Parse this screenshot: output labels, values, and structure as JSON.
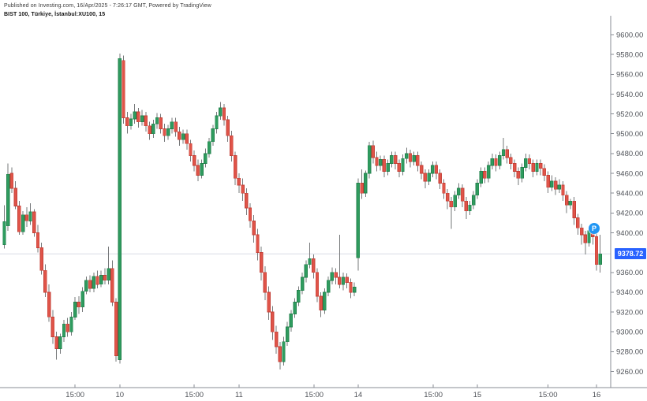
{
  "header": {
    "published_line": "Published on Investing.com, 16/Apr/2025 - 7:26:17 GMT, Powered by TradingView",
    "instrument_line": "BIST 100, Türkiye, İstanbul:XU100, 15"
  },
  "chart_data": {
    "type": "candlestick",
    "title": "BIST 100, Türkiye, İstanbul:XU100, 15",
    "symbol": "İstanbul:XU100",
    "interval_minutes": 15,
    "last_price": "9378.72",
    "last_price_value": 9378.72,
    "marker": {
      "label": "P",
      "price": 9404
    },
    "y_axis": {
      "ylim": [
        9243.7,
        9619.1
      ],
      "tick_values": [
        9600,
        9580,
        9560,
        9540,
        9520,
        9500,
        9480,
        9460,
        9440,
        9420,
        9400,
        9360,
        9340,
        9320,
        9300,
        9280,
        9260
      ],
      "tick_decimals": 2
    },
    "x_axis": {
      "ticks": [
        {
          "label": "15:00",
          "i": 19
        },
        {
          "label": "10",
          "i": 31
        },
        {
          "label": "15:00",
          "i": 51
        },
        {
          "label": "11",
          "i": 63
        },
        {
          "label": "15:00",
          "i": 83.2
        },
        {
          "label": "14",
          "i": 95
        },
        {
          "label": "15:00",
          "i": 115.2
        },
        {
          "label": "15",
          "i": 127
        },
        {
          "label": "15:00",
          "i": 146
        },
        {
          "label": "16",
          "i": 159
        }
      ]
    },
    "colors": {
      "up": "#2f9c5f",
      "up_border": "#23824c",
      "down": "#e05449",
      "down_border": "#c43f36",
      "wick": "#76787a",
      "axis_line": "#888c94",
      "axis_text": "#4f5258",
      "price_line": "#d8dce6",
      "badge_bg": "#2962ff",
      "badge_text": "#ffffff",
      "marker_bg": "#2196f3"
    },
    "candles": [
      [
        9388,
        9428,
        9384,
        9411
      ],
      [
        9407,
        9470,
        9402,
        9459
      ],
      [
        9460,
        9466,
        9440,
        9445
      ],
      [
        9445,
        9452,
        9424,
        9427
      ],
      [
        9427,
        9432,
        9398,
        9401
      ],
      [
        9401,
        9422,
        9398,
        9418
      ],
      [
        9418,
        9426,
        9406,
        9412
      ],
      [
        9412,
        9430,
        9408,
        9421
      ],
      [
        9421,
        9424,
        9396,
        9400
      ],
      [
        9400,
        9408,
        9380,
        9385
      ],
      [
        9385,
        9390,
        9358,
        9362
      ],
      [
        9362,
        9368,
        9335,
        9340
      ],
      [
        9340,
        9348,
        9310,
        9315
      ],
      [
        9315,
        9322,
        9288,
        9295
      ],
      [
        9295,
        9300,
        9272,
        9283
      ],
      [
        9283,
        9298,
        9278,
        9295
      ],
      [
        9295,
        9312,
        9290,
        9308
      ],
      [
        9308,
        9314,
        9295,
        9300
      ],
      [
        9300,
        9320,
        9296,
        9315
      ],
      [
        9315,
        9335,
        9312,
        9330
      ],
      [
        9330,
        9336,
        9318,
        9325
      ],
      [
        9325,
        9345,
        9320,
        9341
      ],
      [
        9341,
        9356,
        9338,
        9352
      ],
      [
        9352,
        9357,
        9340,
        9344
      ],
      [
        9344,
        9360,
        9340,
        9356
      ],
      [
        9356,
        9362,
        9344,
        9348
      ],
      [
        9348,
        9362,
        9345,
        9357
      ],
      [
        9357,
        9364,
        9348,
        9352
      ],
      [
        9352,
        9386,
        9348,
        9364
      ],
      [
        9364,
        9372,
        9326,
        9330
      ],
      [
        9330,
        9334,
        9270,
        9276
      ],
      [
        9272,
        9581,
        9268,
        9576
      ],
      [
        9574,
        9579,
        9510,
        9516
      ],
      [
        9516,
        9522,
        9500,
        9508
      ],
      [
        9508,
        9520,
        9504,
        9515
      ],
      [
        9515,
        9530,
        9510,
        9522
      ],
      [
        9522,
        9526,
        9506,
        9512
      ],
      [
        9512,
        9524,
        9508,
        9518
      ],
      [
        9518,
        9522,
        9502,
        9508
      ],
      [
        9508,
        9512,
        9494,
        9500
      ],
      [
        9500,
        9514,
        9496,
        9510
      ],
      [
        9510,
        9521,
        9505,
        9516
      ],
      [
        9516,
        9520,
        9500,
        9505
      ],
      [
        9505,
        9510,
        9492,
        9498
      ],
      [
        9498,
        9509,
        9494,
        9505
      ],
      [
        9505,
        9516,
        9500,
        9512
      ],
      [
        9512,
        9516,
        9497,
        9502
      ],
      [
        9502,
        9507,
        9488,
        9494
      ],
      [
        9494,
        9504,
        9490,
        9500
      ],
      [
        9500,
        9504,
        9484,
        9490
      ],
      [
        9490,
        9494,
        9472,
        9478
      ],
      [
        9478,
        9483,
        9462,
        9468
      ],
      [
        9468,
        9474,
        9452,
        9458
      ],
      [
        9458,
        9474,
        9455,
        9470
      ],
      [
        9470,
        9485,
        9466,
        9480
      ],
      [
        9480,
        9496,
        9476,
        9492
      ],
      [
        9492,
        9509,
        9488,
        9505
      ],
      [
        9505,
        9522,
        9500,
        9518
      ],
      [
        9518,
        9532,
        9514,
        9526
      ],
      [
        9526,
        9530,
        9508,
        9514
      ],
      [
        9514,
        9518,
        9492,
        9498
      ],
      [
        9498,
        9503,
        9472,
        9478
      ],
      [
        9478,
        9482,
        9448,
        9455
      ],
      [
        9455,
        9460,
        9440,
        9448
      ],
      [
        9448,
        9455,
        9432,
        9440
      ],
      [
        9440,
        9445,
        9418,
        9425
      ],
      [
        9425,
        9430,
        9405,
        9412
      ],
      [
        9412,
        9418,
        9390,
        9398
      ],
      [
        9398,
        9404,
        9372,
        9380
      ],
      [
        9380,
        9386,
        9352,
        9360
      ],
      [
        9360,
        9366,
        9332,
        9340
      ],
      [
        9340,
        9346,
        9312,
        9320
      ],
      [
        9320,
        9326,
        9292,
        9300
      ],
      [
        9300,
        9306,
        9278,
        9285
      ],
      [
        9285,
        9290,
        9262,
        9270
      ],
      [
        9270,
        9295,
        9266,
        9290
      ],
      [
        9290,
        9310,
        9286,
        9305
      ],
      [
        9305,
        9322,
        9300,
        9318
      ],
      [
        9318,
        9334,
        9314,
        9330
      ],
      [
        9330,
        9346,
        9326,
        9342
      ],
      [
        9342,
        9360,
        9338,
        9355
      ],
      [
        9355,
        9372,
        9350,
        9368
      ],
      [
        9368,
        9390,
        9364,
        9374
      ],
      [
        9374,
        9378,
        9354,
        9360
      ],
      [
        9360,
        9364,
        9330,
        9336
      ],
      [
        9336,
        9340,
        9315,
        9322
      ],
      [
        9322,
        9344,
        9318,
        9340
      ],
      [
        9340,
        9356,
        9336,
        9352
      ],
      [
        9352,
        9365,
        9348,
        9360
      ],
      [
        9360,
        9364,
        9348,
        9355
      ],
      [
        9355,
        9398,
        9344,
        9348
      ],
      [
        9348,
        9360,
        9342,
        9355
      ],
      [
        9355,
        9359,
        9344,
        9350
      ],
      [
        9350,
        9354,
        9334,
        9340
      ],
      [
        9340,
        9350,
        9336,
        9345
      ],
      [
        9375,
        9455,
        9362,
        9450
      ],
      [
        9450,
        9464,
        9434,
        9440
      ],
      [
        9440,
        9463,
        9436,
        9460
      ],
      [
        9460,
        9492,
        9455,
        9488
      ],
      [
        9488,
        9493,
        9470,
        9476
      ],
      [
        9476,
        9482,
        9462,
        9468
      ],
      [
        9468,
        9478,
        9463,
        9474
      ],
      [
        9474,
        9478,
        9456,
        9462
      ],
      [
        9462,
        9474,
        9458,
        9470
      ],
      [
        9470,
        9482,
        9466,
        9478
      ],
      [
        9478,
        9482,
        9464,
        9470
      ],
      [
        9470,
        9474,
        9456,
        9462
      ],
      [
        9462,
        9479,
        9458,
        9475
      ],
      [
        9475,
        9486,
        9470,
        9480
      ],
      [
        9480,
        9484,
        9466,
        9472
      ],
      [
        9472,
        9482,
        9468,
        9478
      ],
      [
        9478,
        9482,
        9462,
        9468
      ],
      [
        9468,
        9472,
        9454,
        9460
      ],
      [
        9460,
        9464,
        9445,
        9452
      ],
      [
        9452,
        9464,
        9448,
        9460
      ],
      [
        9460,
        9472,
        9456,
        9468
      ],
      [
        9468,
        9472,
        9454,
        9460
      ],
      [
        9460,
        9464,
        9444,
        9450
      ],
      [
        9450,
        9454,
        9434,
        9440
      ],
      [
        9440,
        9444,
        9424,
        9432
      ],
      [
        9432,
        9436,
        9404,
        9426
      ],
      [
        9426,
        9442,
        9422,
        9438
      ],
      [
        9438,
        9450,
        9434,
        9445
      ],
      [
        9445,
        9449,
        9426,
        9432
      ],
      [
        9432,
        9436,
        9414,
        9422
      ],
      [
        9422,
        9432,
        9418,
        9428
      ],
      [
        9428,
        9442,
        9424,
        9438
      ],
      [
        9438,
        9454,
        9434,
        9450
      ],
      [
        9450,
        9466,
        9446,
        9462
      ],
      [
        9462,
        9466,
        9450,
        9455
      ],
      [
        9455,
        9472,
        9451,
        9468
      ],
      [
        9468,
        9480,
        9464,
        9475
      ],
      [
        9475,
        9479,
        9462,
        9468
      ],
      [
        9468,
        9482,
        9464,
        9478
      ],
      [
        9478,
        9496,
        9474,
        9484
      ],
      [
        9484,
        9488,
        9470,
        9476
      ],
      [
        9476,
        9480,
        9464,
        9470
      ],
      [
        9470,
        9474,
        9456,
        9462
      ],
      [
        9462,
        9466,
        9448,
        9455
      ],
      [
        9455,
        9470,
        9451,
        9466
      ],
      [
        9466,
        9480,
        9462,
        9475
      ],
      [
        9475,
        9479,
        9464,
        9470
      ],
      [
        9470,
        9474,
        9456,
        9462
      ],
      [
        9462,
        9474,
        9458,
        9470
      ],
      [
        9470,
        9474,
        9458,
        9465
      ],
      [
        9465,
        9469,
        9452,
        9458
      ],
      [
        9458,
        9462,
        9440,
        9446
      ],
      [
        9446,
        9458,
        9442,
        9452
      ],
      [
        9452,
        9456,
        9438,
        9444
      ],
      [
        9444,
        9454,
        9440,
        9448
      ],
      [
        9448,
        9452,
        9432,
        9438
      ],
      [
        9438,
        9442,
        9420,
        9428
      ],
      [
        9428,
        9434,
        9424,
        9432
      ],
      [
        9432,
        9436,
        9408,
        9415
      ],
      [
        9415,
        9419,
        9398,
        9405
      ],
      [
        9405,
        9409,
        9388,
        9398
      ],
      [
        9398,
        9402,
        9378,
        9390
      ],
      [
        9390,
        9404,
        9386,
        9402
      ],
      [
        9402,
        9406,
        9388,
        9396
      ],
      [
        9396,
        9400,
        9362,
        9368
      ],
      [
        9368,
        9398,
        9360,
        9378.72
      ]
    ]
  }
}
